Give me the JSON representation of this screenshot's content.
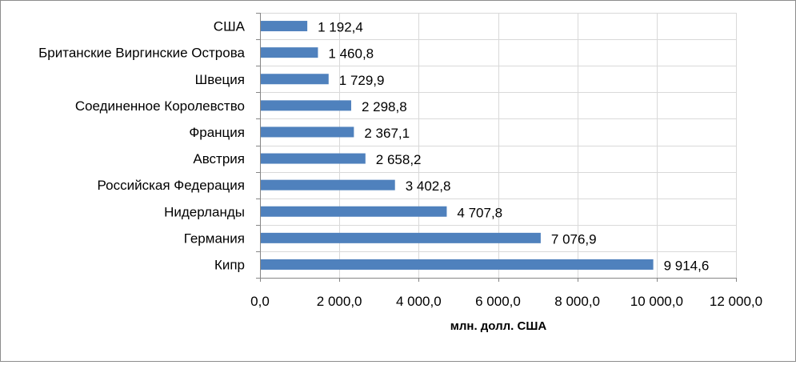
{
  "chart_data": {
    "type": "bar",
    "orientation": "horizontal",
    "categories": [
      "США",
      "Британские Виргинские Острова",
      "Швеция",
      "Соединенное Королевство",
      "Франция",
      "Австрия",
      "Российская Федерация",
      "Нидерланды",
      "Германия",
      "Кипр"
    ],
    "values": [
      1192.4,
      1460.8,
      1729.9,
      2298.8,
      2367.1,
      2658.2,
      3402.8,
      4707.8,
      7076.9,
      9914.6
    ],
    "value_labels": [
      "1 192,4",
      "1 460,8",
      "1 729,9",
      "2 298,8",
      "2 367,1",
      "2 658,2",
      "3 402,8",
      "4 707,8",
      "7 076,9",
      "9 914,6"
    ],
    "x_ticks": [
      0,
      2000,
      4000,
      6000,
      8000,
      10000,
      12000
    ],
    "x_tick_labels": [
      "0,0",
      "2 000,0",
      "4 000,0",
      "6 000,0",
      "8 000,0",
      "10 000,0",
      "12 000,0"
    ],
    "xlim": [
      0,
      12000
    ],
    "xlabel": "млн. долл. США",
    "ylabel": "",
    "title": "",
    "grid": "vertical",
    "legend": "none",
    "bar_color": "#4f81bd"
  }
}
